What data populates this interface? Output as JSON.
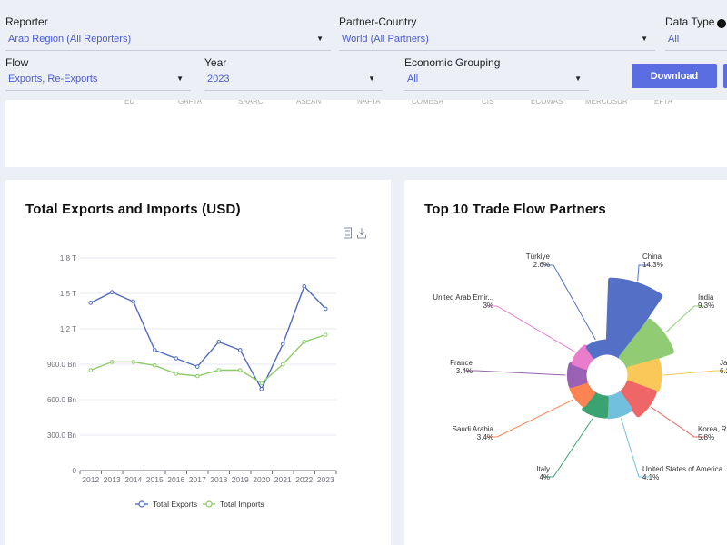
{
  "filters": {
    "reporter": {
      "label": "Reporter",
      "value": "Arab Region (All Reporters)"
    },
    "partner": {
      "label": "Partner-Country",
      "value": "World (All Partners)"
    },
    "data_type": {
      "label": "Data Type",
      "value": "All"
    },
    "flow": {
      "label": "Flow",
      "value": "Exports, Re-Exports"
    },
    "year": {
      "label": "Year",
      "value": "2023"
    },
    "grouping": {
      "label": "Economic Grouping",
      "value": "All"
    },
    "download_label": "Download"
  },
  "top_card": {
    "axis_fragments": [
      "EU",
      "GAFTA",
      "SAARC",
      "ASEAN",
      "NAFTA",
      "COMESA",
      "CIS",
      "ECOWAS",
      "MERCOSUR",
      "EFTA"
    ]
  },
  "line_card": {
    "title": "Total Exports and Imports (USD)",
    "icons": [
      "data-view-icon",
      "save-image-icon"
    ]
  },
  "pie_card": {
    "title": "Top 10 Trade Flow Partners"
  },
  "colors": {
    "accent": "#5b6ee1",
    "exports": "#4f6bbf",
    "imports": "#8dcc6a"
  },
  "chart_data": [
    {
      "type": "line",
      "x": [
        "2012",
        "2013",
        "2014",
        "2015",
        "2016",
        "2017",
        "2018",
        "2019",
        "2020",
        "2021",
        "2022",
        "2023"
      ],
      "y_ticks": [
        "0",
        "300.0 Bn",
        "600.0 Bn",
        "900.0 Bn",
        "1.2 T",
        "1.5 T",
        "1.8 T"
      ],
      "ylim": [
        0,
        1.8
      ],
      "series": [
        {
          "name": "Total Exports",
          "color": "#4f6bbf",
          "values": [
            1.42,
            1.51,
            1.43,
            1.02,
            0.95,
            0.88,
            1.09,
            1.02,
            0.69,
            1.07,
            1.56,
            1.37
          ]
        },
        {
          "name": "Total Imports",
          "color": "#8dcc6a",
          "values": [
            0.85,
            0.92,
            0.92,
            0.89,
            0.82,
            0.8,
            0.85,
            0.85,
            0.74,
            0.9,
            1.09,
            1.15
          ]
        }
      ],
      "legend": "bottom-center",
      "grid": true
    },
    {
      "type": "pie",
      "variant": "rose",
      "slices": [
        {
          "name": "China",
          "percent": "14.3%",
          "value": 14.3,
          "color": "#5470c6"
        },
        {
          "name": "India",
          "percent": "9.3%",
          "value": 9.3,
          "color": "#91cc75"
        },
        {
          "name": "Ja",
          "percent": "6.2",
          "value": 6.2,
          "color": "#fac858"
        },
        {
          "name": "Korea, Re",
          "percent": "5.8%",
          "value": 5.8,
          "color": "#ee6666"
        },
        {
          "name": "United States of America",
          "percent": "4.1%",
          "value": 4.1,
          "color": "#73c0de"
        },
        {
          "name": "Italy",
          "percent": "4%",
          "value": 4.0,
          "color": "#3ba272"
        },
        {
          "name": "Saudi Arabia",
          "percent": "3.4%",
          "value": 3.4,
          "color": "#fc8452"
        },
        {
          "name": "France",
          "percent": "3.4%",
          "value": 3.4,
          "color": "#9a60b4"
        },
        {
          "name": "United Arab Emir...",
          "percent": "3%",
          "value": 3.0,
          "color": "#ea7ccc"
        },
        {
          "name": "Türkiye",
          "percent": "2.6%",
          "value": 2.6,
          "color": "#5470c6"
        }
      ]
    }
  ]
}
